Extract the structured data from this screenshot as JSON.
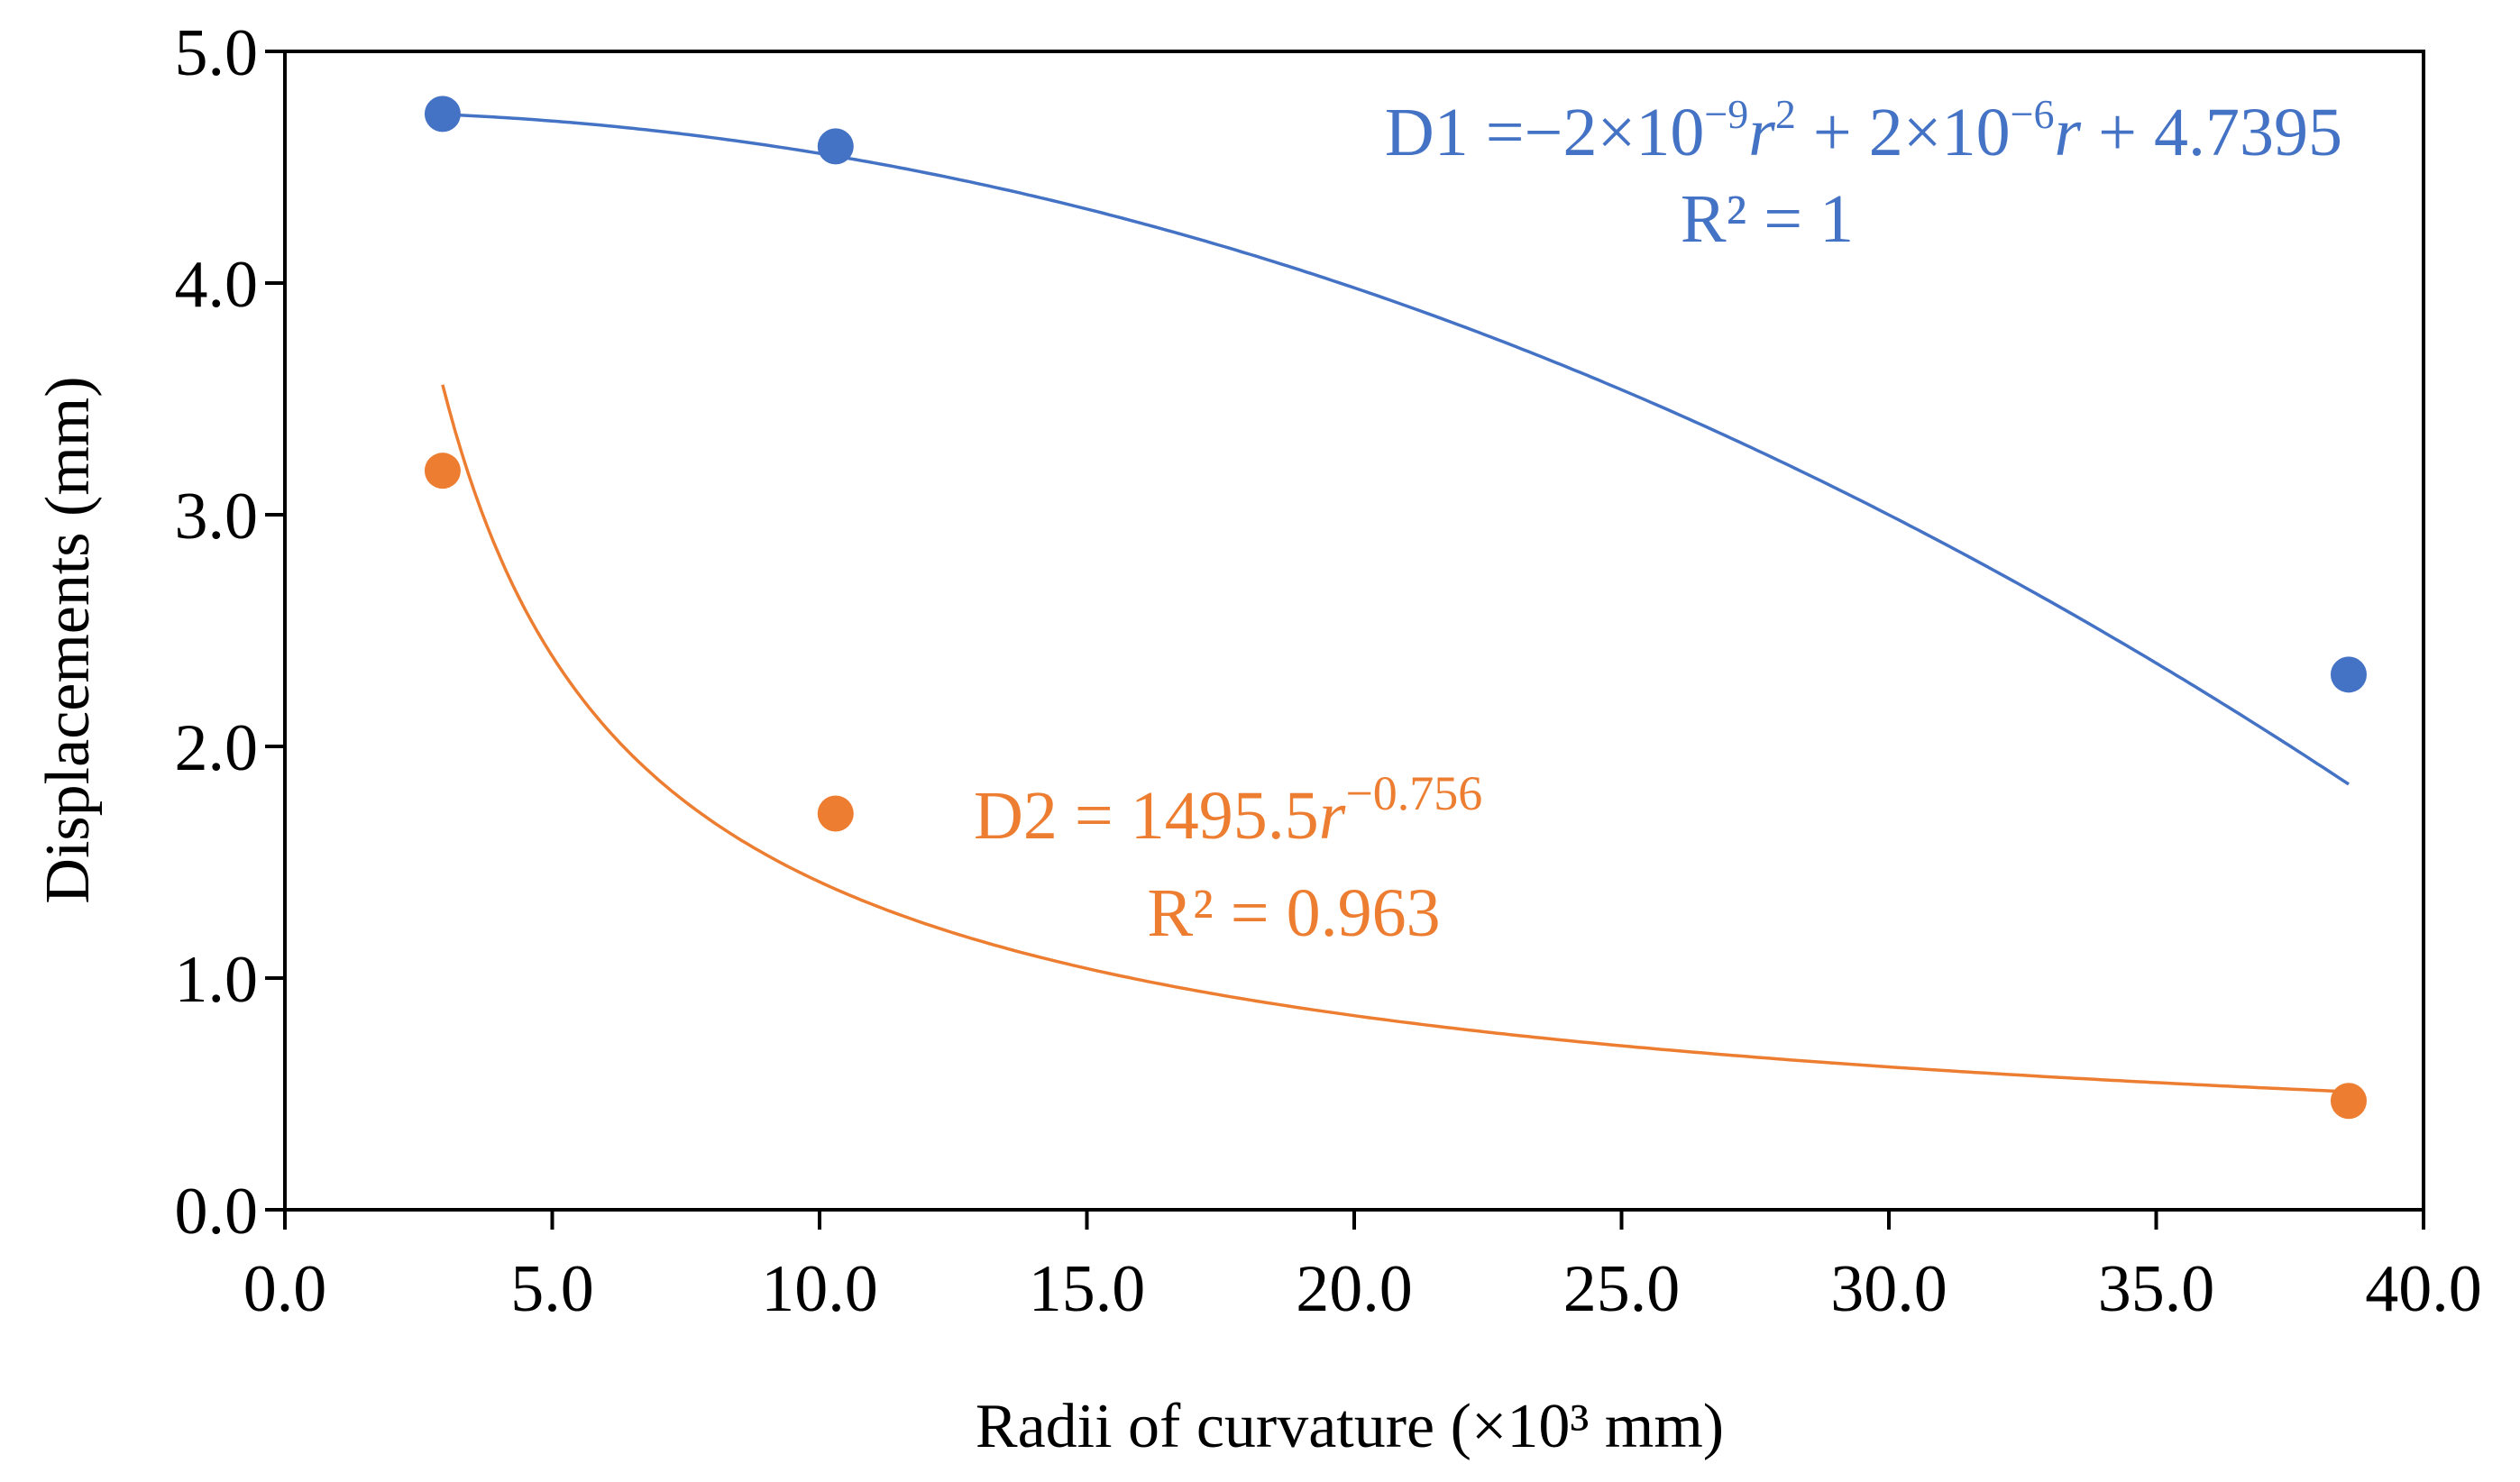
{
  "chart_data": {
    "type": "scatter",
    "title": "",
    "xlabel": "Radii  of curvature  (×10³ mm)",
    "ylabel": "Displacements  (mm)",
    "xlim": [
      0,
      40
    ],
    "ylim": [
      0,
      5
    ],
    "x_ticks": [
      "0.0",
      "5.0",
      "10.0",
      "15.0",
      "20.0",
      "25.0",
      "30.0",
      "35.0",
      "40.0"
    ],
    "y_ticks": [
      "0.0",
      "1.0",
      "2.0",
      "3.0",
      "4.0",
      "5.0"
    ],
    "grid": false,
    "legend": "none",
    "series": [
      {
        "name": "D1",
        "color": "#4472C4",
        "x": [
          2.95,
          10.3,
          38.6
        ],
        "y": [
          4.73,
          4.59,
          2.31
        ],
        "trendline": {
          "type": "polynomial",
          "a": -0.002,
          "b": 0.002,
          "c": 4.7395,
          "r2": 1,
          "x_from": 2.95,
          "x_to": 38.6
        },
        "equation_label": {
          "prefix": "D1 =−2×10",
          "exp1": "−9",
          "var1": "r",
          "pow1": "2",
          "mid": " + 2×10",
          "exp2": "−6",
          "var2": "r",
          "suffix": " + 4.7395"
        },
        "r2_label": "R² = 1"
      },
      {
        "name": "D2",
        "color": "#ED7D31",
        "x": [
          2.95,
          10.3,
          38.6
        ],
        "y": [
          3.19,
          1.71,
          0.47
        ],
        "trendline": {
          "type": "power",
          "coef": 1495.5,
          "exponent": -0.756,
          "r2": 0.963,
          "x_from": 2.95,
          "x_to": 38.6
        },
        "equation_label": {
          "prefix": "D2 = 1495.5",
          "var": "r",
          "exp": "−0.756"
        },
        "r2_label": "R² = 0.963"
      }
    ]
  }
}
